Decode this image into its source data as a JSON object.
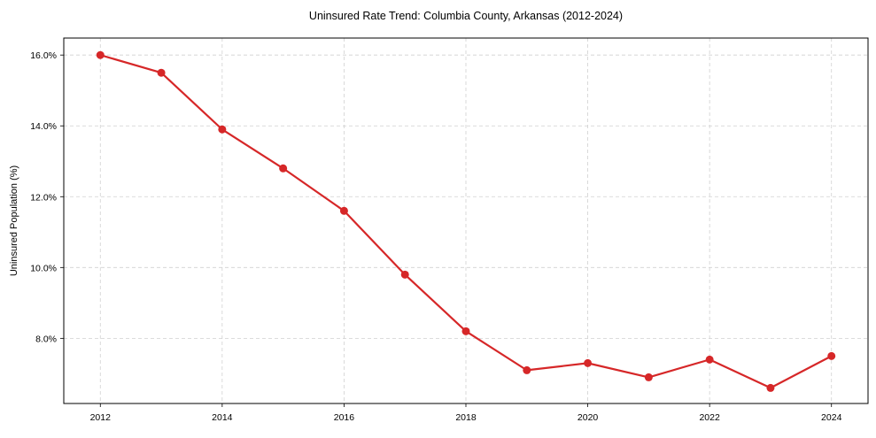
{
  "chart_data": {
    "type": "line",
    "title": "Uninsured Rate Trend: Columbia County, Arkansas (2012-2024)",
    "xlabel": "",
    "ylabel": "Uninsured Population (%)",
    "x": [
      2012,
      2013,
      2014,
      2015,
      2016,
      2017,
      2018,
      2019,
      2020,
      2021,
      2022,
      2023,
      2024
    ],
    "series": [
      {
        "name": "Uninsured Rate",
        "values": [
          16.0,
          15.5,
          13.9,
          12.8,
          11.6,
          9.8,
          8.2,
          7.1,
          7.3,
          6.9,
          7.4,
          6.6,
          7.5
        ],
        "color": "#d62728",
        "marker": "circle"
      }
    ],
    "xticks": [
      2012,
      2014,
      2016,
      2018,
      2020,
      2022,
      2024
    ],
    "xtick_labels": [
      "2012",
      "2014",
      "2016",
      "2018",
      "2020",
      "2022",
      "2024"
    ],
    "yticks": [
      8.0,
      10.0,
      12.0,
      14.0,
      16.0
    ],
    "ytick_labels": [
      "8.0%",
      "10.0%",
      "12.0%",
      "14.0%",
      "16.0%"
    ],
    "xlim": [
      2011.4,
      2024.6
    ],
    "ylim": [
      6.16,
      16.48
    ],
    "grid": true,
    "grid_style": "dashed",
    "legend": null
  }
}
